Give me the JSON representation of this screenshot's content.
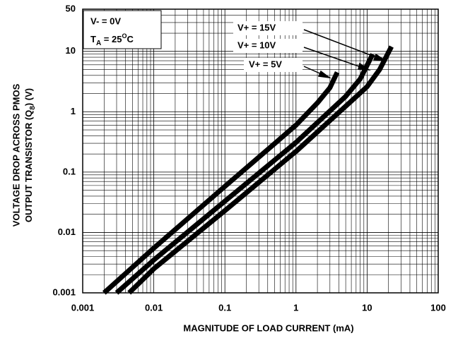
{
  "chart_data": {
    "type": "line",
    "x_label": "MAGNITUDE OF LOAD CURRENT (mA)",
    "y_label": [
      "VOLTAGE DROP ACROSS PMOS",
      "OUTPUT TRANSISTOR (Q",
      "8",
      ") (V)"
    ],
    "annotations": [
      "V- = 0V",
      "T",
      "A",
      " = 25",
      "O",
      "C"
    ],
    "xscale": "log",
    "yscale": "log",
    "grid": true,
    "color": "#000000",
    "xlim": [
      0.001,
      100
    ],
    "xticks": [
      0.001,
      0.01,
      0.1,
      1,
      10,
      100
    ],
    "ylim": [
      0.001,
      50
    ],
    "yticks": [
      0.001,
      0.01,
      0.1,
      1,
      10,
      50
    ],
    "series": [
      {
        "name": "V+ = 5V",
        "x": [
          0.002,
          0.01,
          0.1,
          1,
          2,
          3,
          3.8
        ],
        "values": [
          0.001,
          0.0055,
          0.058,
          0.6,
          1.4,
          2.5,
          4.5
        ]
      },
      {
        "name": "V+ = 10V",
        "x": [
          0.003,
          0.01,
          0.1,
          1,
          5,
          8,
          12
        ],
        "values": [
          0.001,
          0.0035,
          0.033,
          0.31,
          1.8,
          3.5,
          9
        ]
      },
      {
        "name": "V+ = 15V",
        "x": [
          0.0045,
          0.01,
          0.1,
          1,
          10,
          15,
          22
        ],
        "values": [
          0.001,
          0.0025,
          0.023,
          0.22,
          2.6,
          5,
          12
        ]
      }
    ]
  }
}
